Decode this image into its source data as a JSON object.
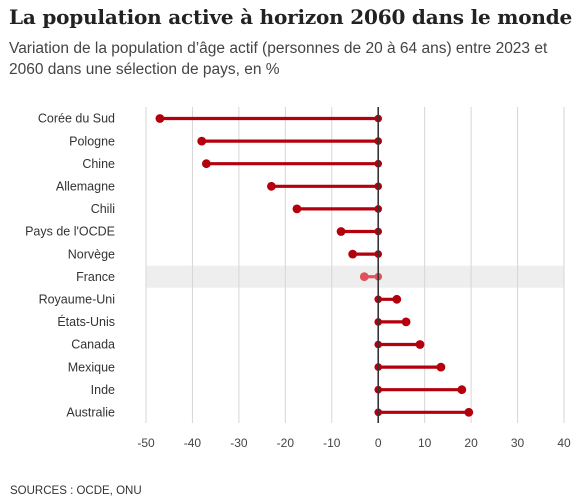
{
  "title": "La population active à horizon 2060 dans le monde",
  "subtitle": "Variation de la population d’âge actif (personnes de 20 à 64 ans) entre 2023 et 2060 dans une sélection de pays, en %",
  "source": "SOURCES : OCDE, ONU",
  "chart_data": {
    "type": "bar",
    "style": "lollipop",
    "categories": [
      "Corée du Sud",
      "Pologne",
      "Chine",
      "Allemagne",
      "Chili",
      "Pays de l'OCDE",
      "Norvège",
      "France",
      "Royaume-Uni",
      "États-Unis",
      "Canada",
      "Mexique",
      "Inde",
      "Australie"
    ],
    "values": [
      -47,
      -38,
      -37,
      -23,
      -17.5,
      -8,
      -5.5,
      -3,
      4,
      6,
      9,
      13.5,
      18,
      19.5
    ],
    "highlight": "France",
    "xlim": [
      -50,
      40
    ],
    "xticks": [
      -50,
      -40,
      -30,
      -20,
      -10,
      0,
      10,
      20,
      30,
      40
    ],
    "grid": true,
    "colors": {
      "bar": "#b3000c",
      "bar_highlight": "#e0525a",
      "highlight_band": "#eeeeee",
      "grid": "#d6d6d6",
      "zero_line": "#333333"
    }
  }
}
